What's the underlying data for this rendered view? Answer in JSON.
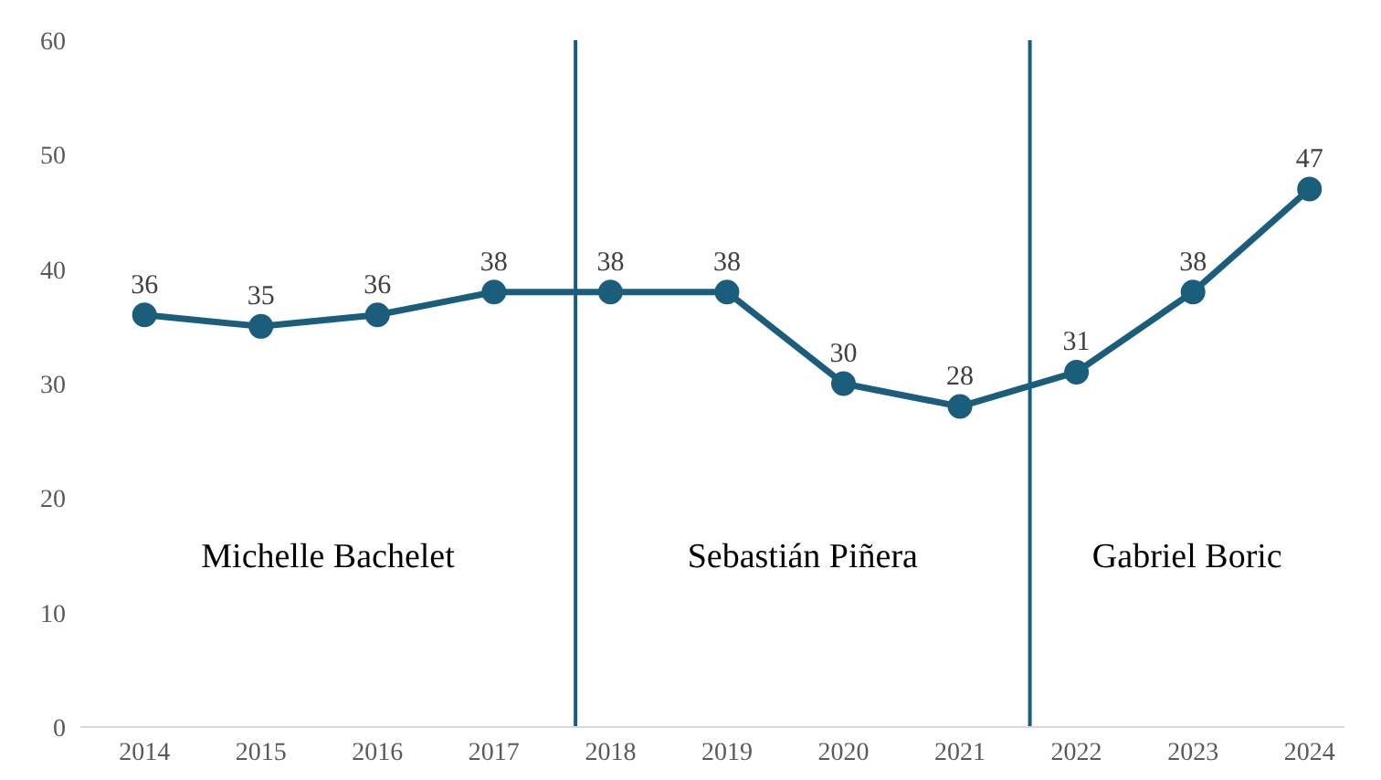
{
  "chart_data": {
    "type": "line",
    "x": [
      2014,
      2015,
      2016,
      2017,
      2018,
      2019,
      2020,
      2021,
      2022,
      2023,
      2024
    ],
    "series": [
      {
        "color": "#1b5e7b",
        "values": [
          36,
          35,
          36,
          38,
          38,
          38,
          30,
          28,
          31,
          38,
          47
        ]
      }
    ],
    "xlim": [
      2013.45,
      2024.3
    ],
    "xticks": [
      2014,
      2015,
      2016,
      2017,
      2018,
      2019,
      2020,
      2021,
      2022,
      2023,
      2024
    ],
    "ylim": [
      0,
      60
    ],
    "yticks": [
      0,
      10,
      20,
      30,
      40,
      50,
      60
    ],
    "ref_lines": [
      {
        "axis": "x",
        "value": 2017.7,
        "color": "#1b5e7b"
      },
      {
        "axis": "x",
        "value": 2021.6,
        "color": "#1b5e7b"
      }
    ],
    "annotations": [
      "Michelle Bachelet",
      "Sebastián Piñera",
      "Gabriel Boric"
    ],
    "data_labels": true,
    "marker": "circle",
    "line_style": "solid",
    "grid": false,
    "legend": false
  }
}
